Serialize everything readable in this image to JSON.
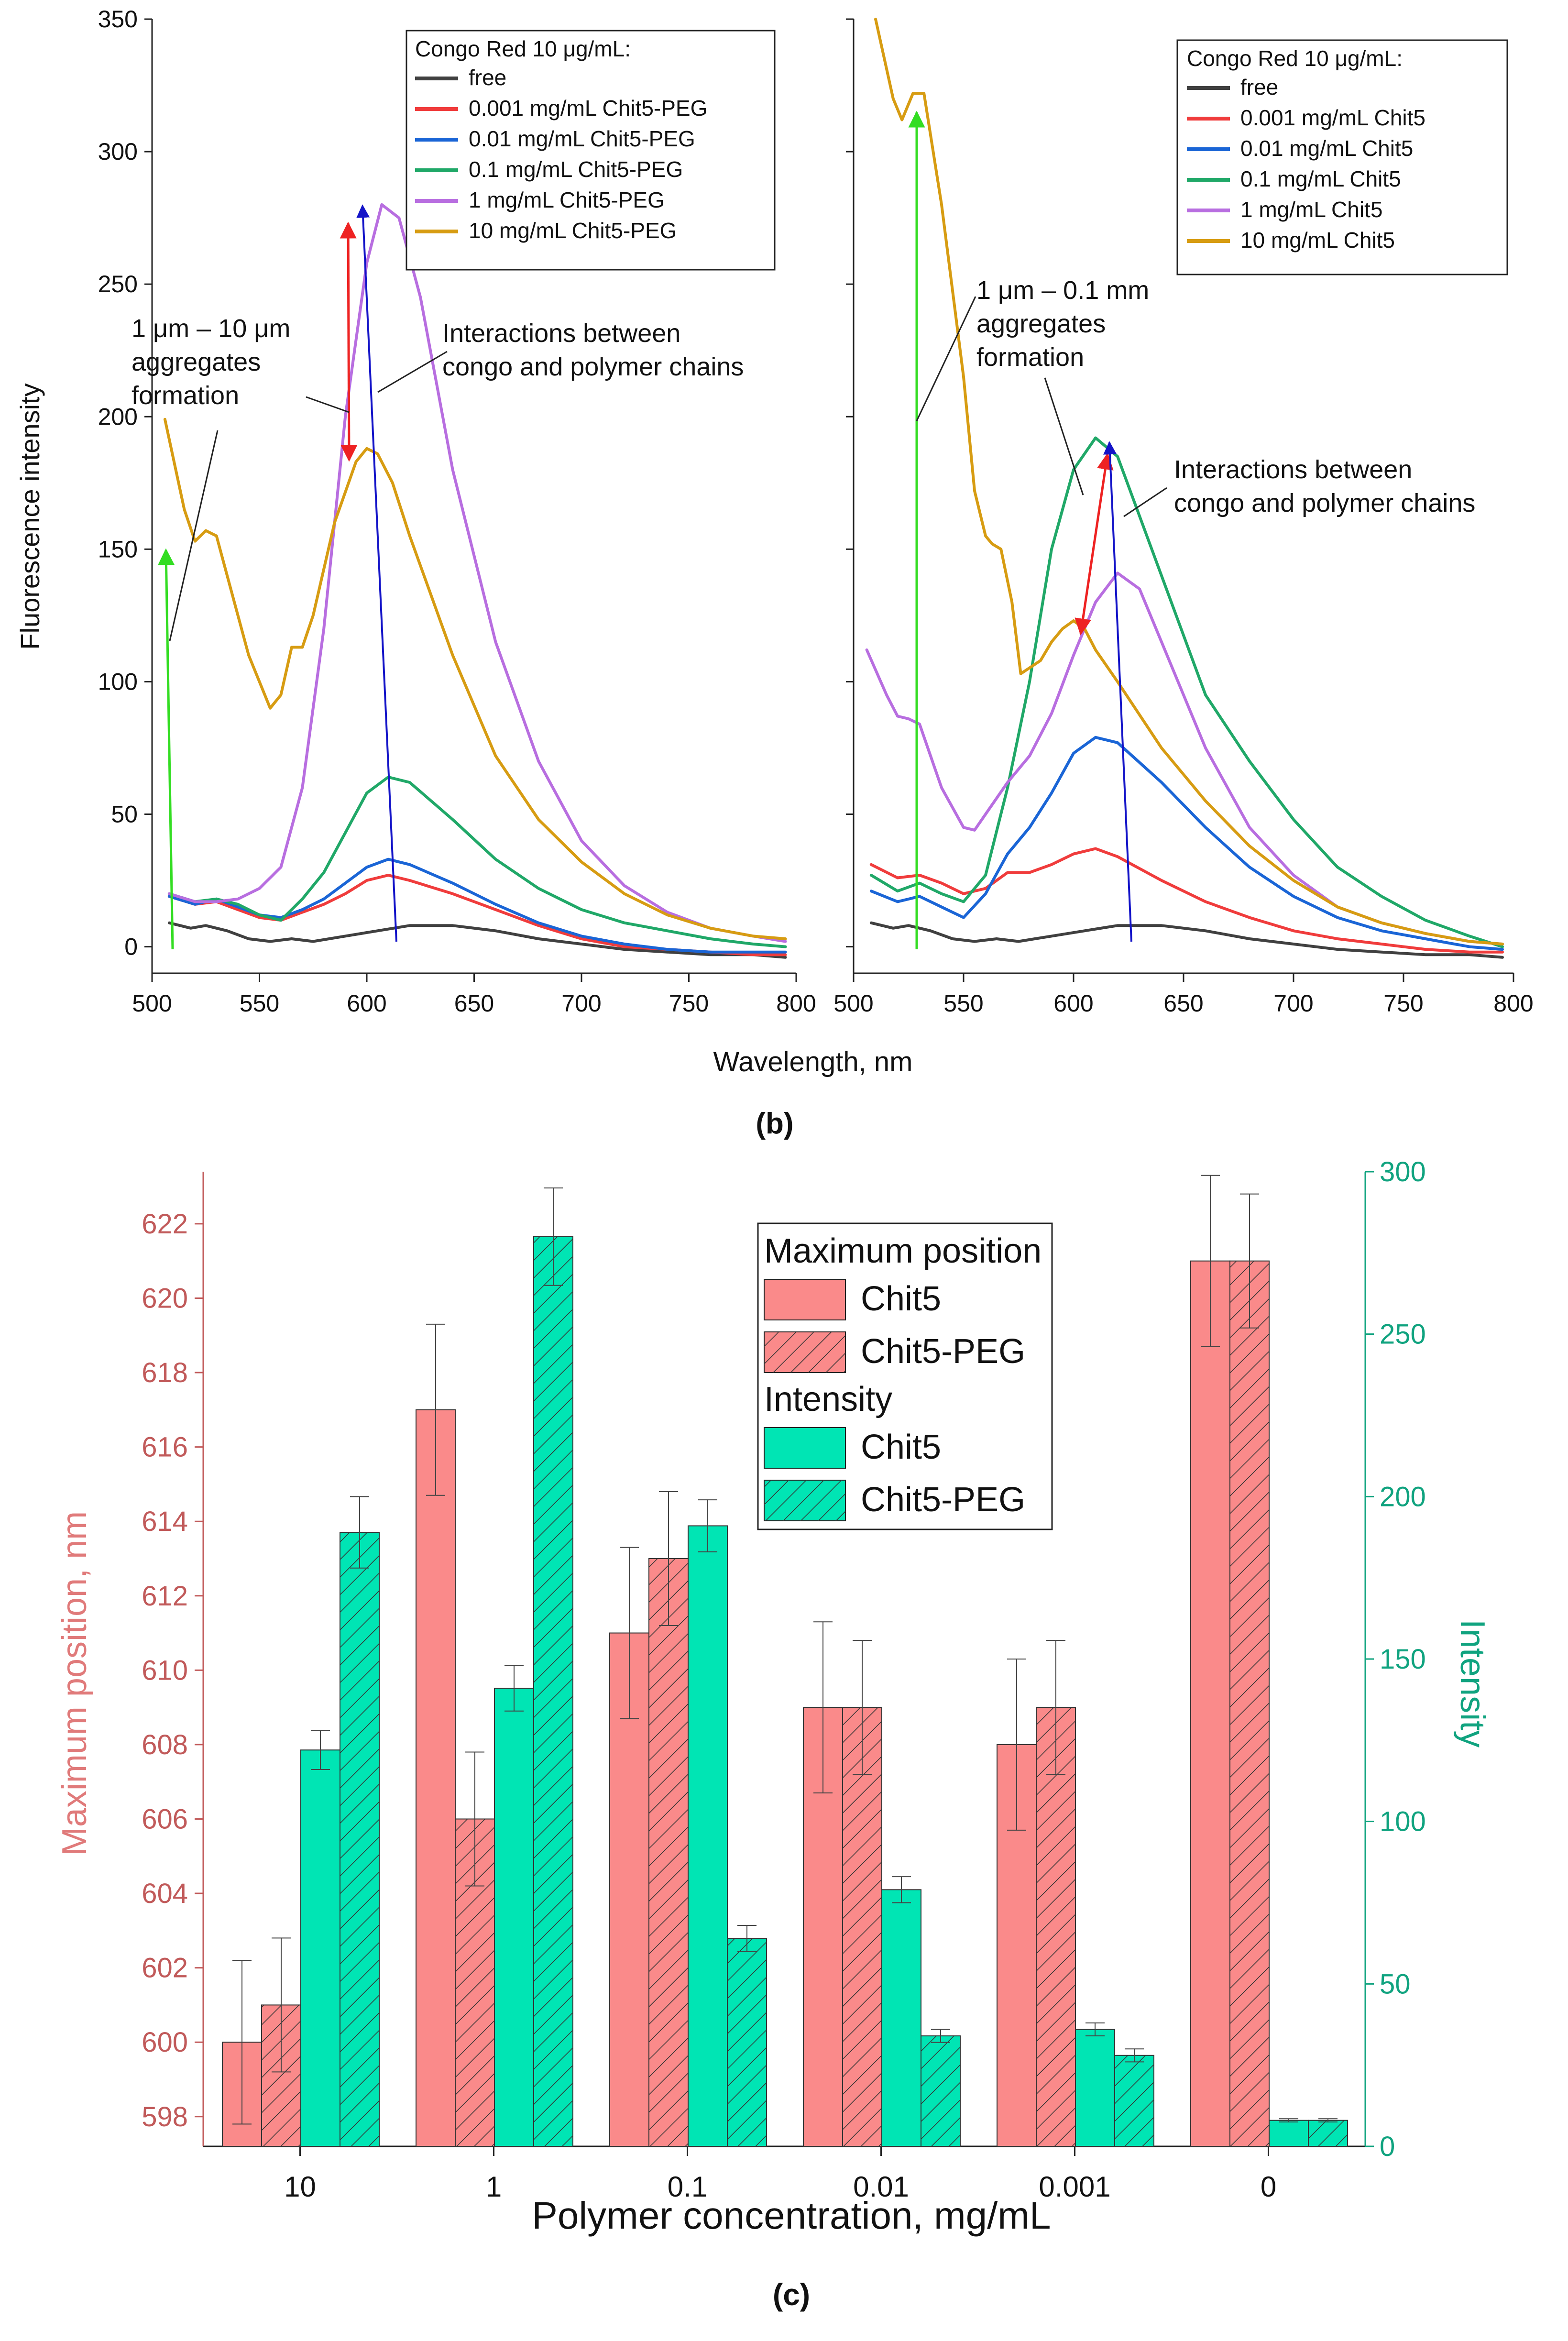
{
  "figure": {
    "panel_b_label": "(b)",
    "panel_c_label": "(c)"
  },
  "chart_data": [
    {
      "id": "left",
      "type": "line",
      "xlabel": "Wavelength, nm",
      "ylabel": "Fluorescence intensity",
      "xlim": [
        500,
        800
      ],
      "ylim": [
        -10,
        350
      ],
      "xticks": [
        500,
        550,
        600,
        650,
        700,
        750,
        800
      ],
      "yticks": [
        0,
        50,
        100,
        150,
        200,
        250,
        300,
        350
      ],
      "legend_title": "Congo Red 10 μg/mL:",
      "series": [
        {
          "name": "free",
          "color": "#404040",
          "x": [
            508,
            518,
            525,
            535,
            545,
            555,
            565,
            575,
            590,
            605,
            620,
            640,
            660,
            680,
            700,
            720,
            740,
            760,
            780,
            795
          ],
          "y": [
            9,
            7,
            8,
            6,
            3,
            2,
            3,
            2,
            4,
            6,
            8,
            8,
            6,
            3,
            1,
            -1,
            -2,
            -3,
            -3,
            -4
          ]
        },
        {
          "name": "0.001 mg/mL Chit5-PEG",
          "color": "#f03c3c",
          "x": [
            508,
            520,
            530,
            540,
            550,
            560,
            570,
            580,
            590,
            600,
            610,
            620,
            640,
            660,
            680,
            700,
            720,
            740,
            760,
            780,
            795
          ],
          "y": [
            19,
            16,
            17,
            14,
            11,
            10,
            13,
            16,
            20,
            25,
            27,
            25,
            20,
            14,
            8,
            3,
            0,
            -1,
            -2,
            -3,
            -3
          ]
        },
        {
          "name": "0.01 mg/mL Chit5-PEG",
          "color": "#1a65d6",
          "x": [
            508,
            520,
            530,
            540,
            550,
            560,
            570,
            580,
            590,
            600,
            610,
            620,
            640,
            660,
            680,
            700,
            720,
            740,
            760,
            780,
            795
          ],
          "y": [
            19,
            16,
            18,
            15,
            12,
            11,
            14,
            18,
            24,
            30,
            33,
            31,
            24,
            16,
            9,
            4,
            1,
            -1,
            -2,
            -2,
            -2
          ]
        },
        {
          "name": "0.1 mg/mL Chit5-PEG",
          "color": "#20a868",
          "x": [
            508,
            520,
            530,
            540,
            550,
            560,
            570,
            580,
            590,
            600,
            610,
            620,
            640,
            660,
            680,
            700,
            720,
            740,
            760,
            780,
            795
          ],
          "y": [
            20,
            17,
            18,
            16,
            12,
            10,
            18,
            28,
            43,
            58,
            64,
            62,
            48,
            33,
            22,
            14,
            9,
            6,
            3,
            1,
            0
          ]
        },
        {
          "name": "1 mg/mL Chit5-PEG",
          "color": "#b86ee0",
          "x": [
            508,
            520,
            530,
            540,
            550,
            560,
            570,
            580,
            590,
            600,
            607,
            615,
            625,
            640,
            660,
            680,
            700,
            720,
            740,
            760,
            780,
            795
          ],
          "y": [
            20,
            17,
            17,
            18,
            22,
            30,
            60,
            120,
            200,
            258,
            280,
            275,
            245,
            180,
            115,
            70,
            40,
            23,
            13,
            7,
            4,
            2
          ]
        },
        {
          "name": "10 mg/mL Chit5-PEG",
          "color": "#d79c12",
          "x": [
            506,
            515,
            520,
            525,
            530,
            535,
            545,
            555,
            560,
            565,
            570,
            575,
            585,
            595,
            600,
            605,
            612,
            620,
            640,
            660,
            680,
            700,
            720,
            740,
            760,
            780,
            795
          ],
          "y": [
            199,
            165,
            153,
            157,
            155,
            140,
            110,
            90,
            95,
            113,
            113,
            125,
            160,
            183,
            188,
            186,
            175,
            155,
            110,
            72,
            48,
            32,
            20,
            12,
            7,
            4,
            3
          ]
        }
      ],
      "annotations": [
        "1 μm – 10 μm",
        "aggregates",
        "formation",
        "Interactions between",
        "congo and polymer chains"
      ]
    },
    {
      "id": "right",
      "type": "line",
      "xlim": [
        500,
        800
      ],
      "ylim": [
        -10,
        350
      ],
      "xticks": [
        500,
        550,
        600,
        650,
        700,
        750,
        800
      ],
      "legend_title": "Congo Red 10 μg/mL:",
      "series": [
        {
          "name": "free",
          "color": "#404040",
          "x": [
            508,
            518,
            525,
            535,
            545,
            555,
            565,
            575,
            590,
            605,
            620,
            640,
            660,
            680,
            700,
            720,
            740,
            760,
            780,
            795
          ],
          "y": [
            9,
            7,
            8,
            6,
            3,
            2,
            3,
            2,
            4,
            6,
            8,
            8,
            6,
            3,
            1,
            -1,
            -2,
            -3,
            -3,
            -4
          ]
        },
        {
          "name": "0.001 mg/mL Chit5",
          "color": "#f03c3c",
          "x": [
            508,
            520,
            530,
            540,
            550,
            560,
            570,
            580,
            590,
            600,
            610,
            620,
            640,
            660,
            680,
            700,
            720,
            740,
            760,
            780,
            795
          ],
          "y": [
            31,
            26,
            27,
            24,
            20,
            22,
            28,
            28,
            31,
            35,
            37,
            34,
            25,
            17,
            11,
            6,
            3,
            1,
            -1,
            -2,
            -2
          ]
        },
        {
          "name": "0.01 mg/mL Chit5",
          "color": "#1a65d6",
          "x": [
            508,
            520,
            530,
            540,
            550,
            560,
            570,
            580,
            590,
            600,
            610,
            620,
            640,
            660,
            680,
            700,
            720,
            740,
            760,
            780,
            795
          ],
          "y": [
            21,
            17,
            19,
            15,
            11,
            20,
            35,
            45,
            58,
            73,
            79,
            77,
            62,
            45,
            30,
            19,
            11,
            6,
            3,
            0,
            -1
          ]
        },
        {
          "name": "0.1 mg/mL Chit5",
          "color": "#20a868",
          "x": [
            508,
            520,
            530,
            540,
            550,
            560,
            570,
            580,
            590,
            600,
            610,
            620,
            640,
            660,
            680,
            700,
            720,
            740,
            760,
            780,
            795
          ],
          "y": [
            27,
            21,
            24,
            20,
            17,
            27,
            60,
            100,
            150,
            180,
            192,
            185,
            140,
            95,
            70,
            48,
            30,
            19,
            10,
            4,
            0
          ]
        },
        {
          "name": "1 mg/mL Chit5",
          "color": "#b86ee0",
          "x": [
            506,
            515,
            520,
            525,
            530,
            540,
            550,
            555,
            560,
            570,
            580,
            590,
            600,
            610,
            620,
            630,
            640,
            660,
            680,
            700,
            720,
            740,
            760,
            780,
            795
          ],
          "y": [
            112,
            95,
            87,
            86,
            84,
            60,
            45,
            44,
            50,
            62,
            72,
            88,
            110,
            130,
            141,
            135,
            115,
            75,
            45,
            27,
            15,
            9,
            5,
            2,
            1
          ]
        },
        {
          "name": "10 mg/mL Chit5",
          "color": "#d79c12",
          "x": [
            510,
            518,
            522,
            527,
            532,
            540,
            550,
            555,
            560,
            563,
            567,
            572,
            576,
            585,
            590,
            595,
            600,
            605,
            610,
            620,
            640,
            660,
            680,
            700,
            720,
            740,
            760,
            780,
            795
          ],
          "y": [
            350,
            320,
            312,
            322,
            322,
            280,
            215,
            172,
            155,
            152,
            150,
            130,
            103,
            108,
            115,
            120,
            123,
            120,
            112,
            100,
            75,
            55,
            38,
            25,
            15,
            9,
            5,
            2,
            1
          ]
        }
      ],
      "annotations": [
        "1 μm – 0.1 mm",
        "aggregates",
        "formation",
        "Interactions between",
        "congo and polymer chains"
      ]
    },
    {
      "id": "bottom",
      "type": "bar",
      "xlabel": "Polymer concentration, mg/mL",
      "ylabel_left": "Maximum position, nm",
      "ylabel_right": "Intensity",
      "categories": [
        "10",
        "1",
        "0.1",
        "0.01",
        "0.001",
        "0"
      ],
      "ylim_left": [
        597.2,
        623.4
      ],
      "ylim_right": [
        0,
        300
      ],
      "yticks_left": [
        598,
        600,
        602,
        604,
        606,
        608,
        610,
        612,
        614,
        616,
        618,
        620,
        622
      ],
      "yticks_right": [
        0,
        50,
        100,
        150,
        200,
        250,
        300
      ],
      "left_color": "#c15a5a",
      "right_color": "#10a37f",
      "legend": {
        "group1": "Maximum position",
        "group2": "Intensity",
        "items": [
          "Chit5",
          "Chit5-PEG",
          "Chit5",
          "Chit5-PEG"
        ]
      },
      "series": [
        {
          "name": "Chit5",
          "group": "Maximum position",
          "axis": "left",
          "fill": "#fa8a8a",
          "hatch": false,
          "values": [
            600,
            617,
            611,
            609,
            608,
            621
          ],
          "errors": [
            2.2,
            2.3,
            2.3,
            2.3,
            2.3,
            2.3
          ]
        },
        {
          "name": "Chit5-PEG",
          "group": "Maximum position",
          "axis": "left",
          "fill": "#fa8a8a",
          "hatch": true,
          "values": [
            601,
            606,
            613,
            609,
            609,
            621
          ],
          "errors": [
            1.8,
            1.8,
            1.8,
            1.8,
            1.8,
            1.8
          ]
        },
        {
          "name": "Chit5",
          "group": "Intensity",
          "axis": "right",
          "fill": "#00e5b4",
          "hatch": false,
          "values": [
            122,
            141,
            191,
            79,
            36,
            8
          ],
          "errors": [
            6,
            7,
            8,
            4,
            2,
            0.5
          ]
        },
        {
          "name": "Chit5-PEG",
          "group": "Intensity",
          "axis": "right",
          "fill": "#00e5b4",
          "hatch": true,
          "values": [
            189,
            280,
            64,
            34,
            28,
            8
          ],
          "errors": [
            11,
            15,
            4,
            2,
            2,
            0.5
          ]
        }
      ]
    }
  ]
}
